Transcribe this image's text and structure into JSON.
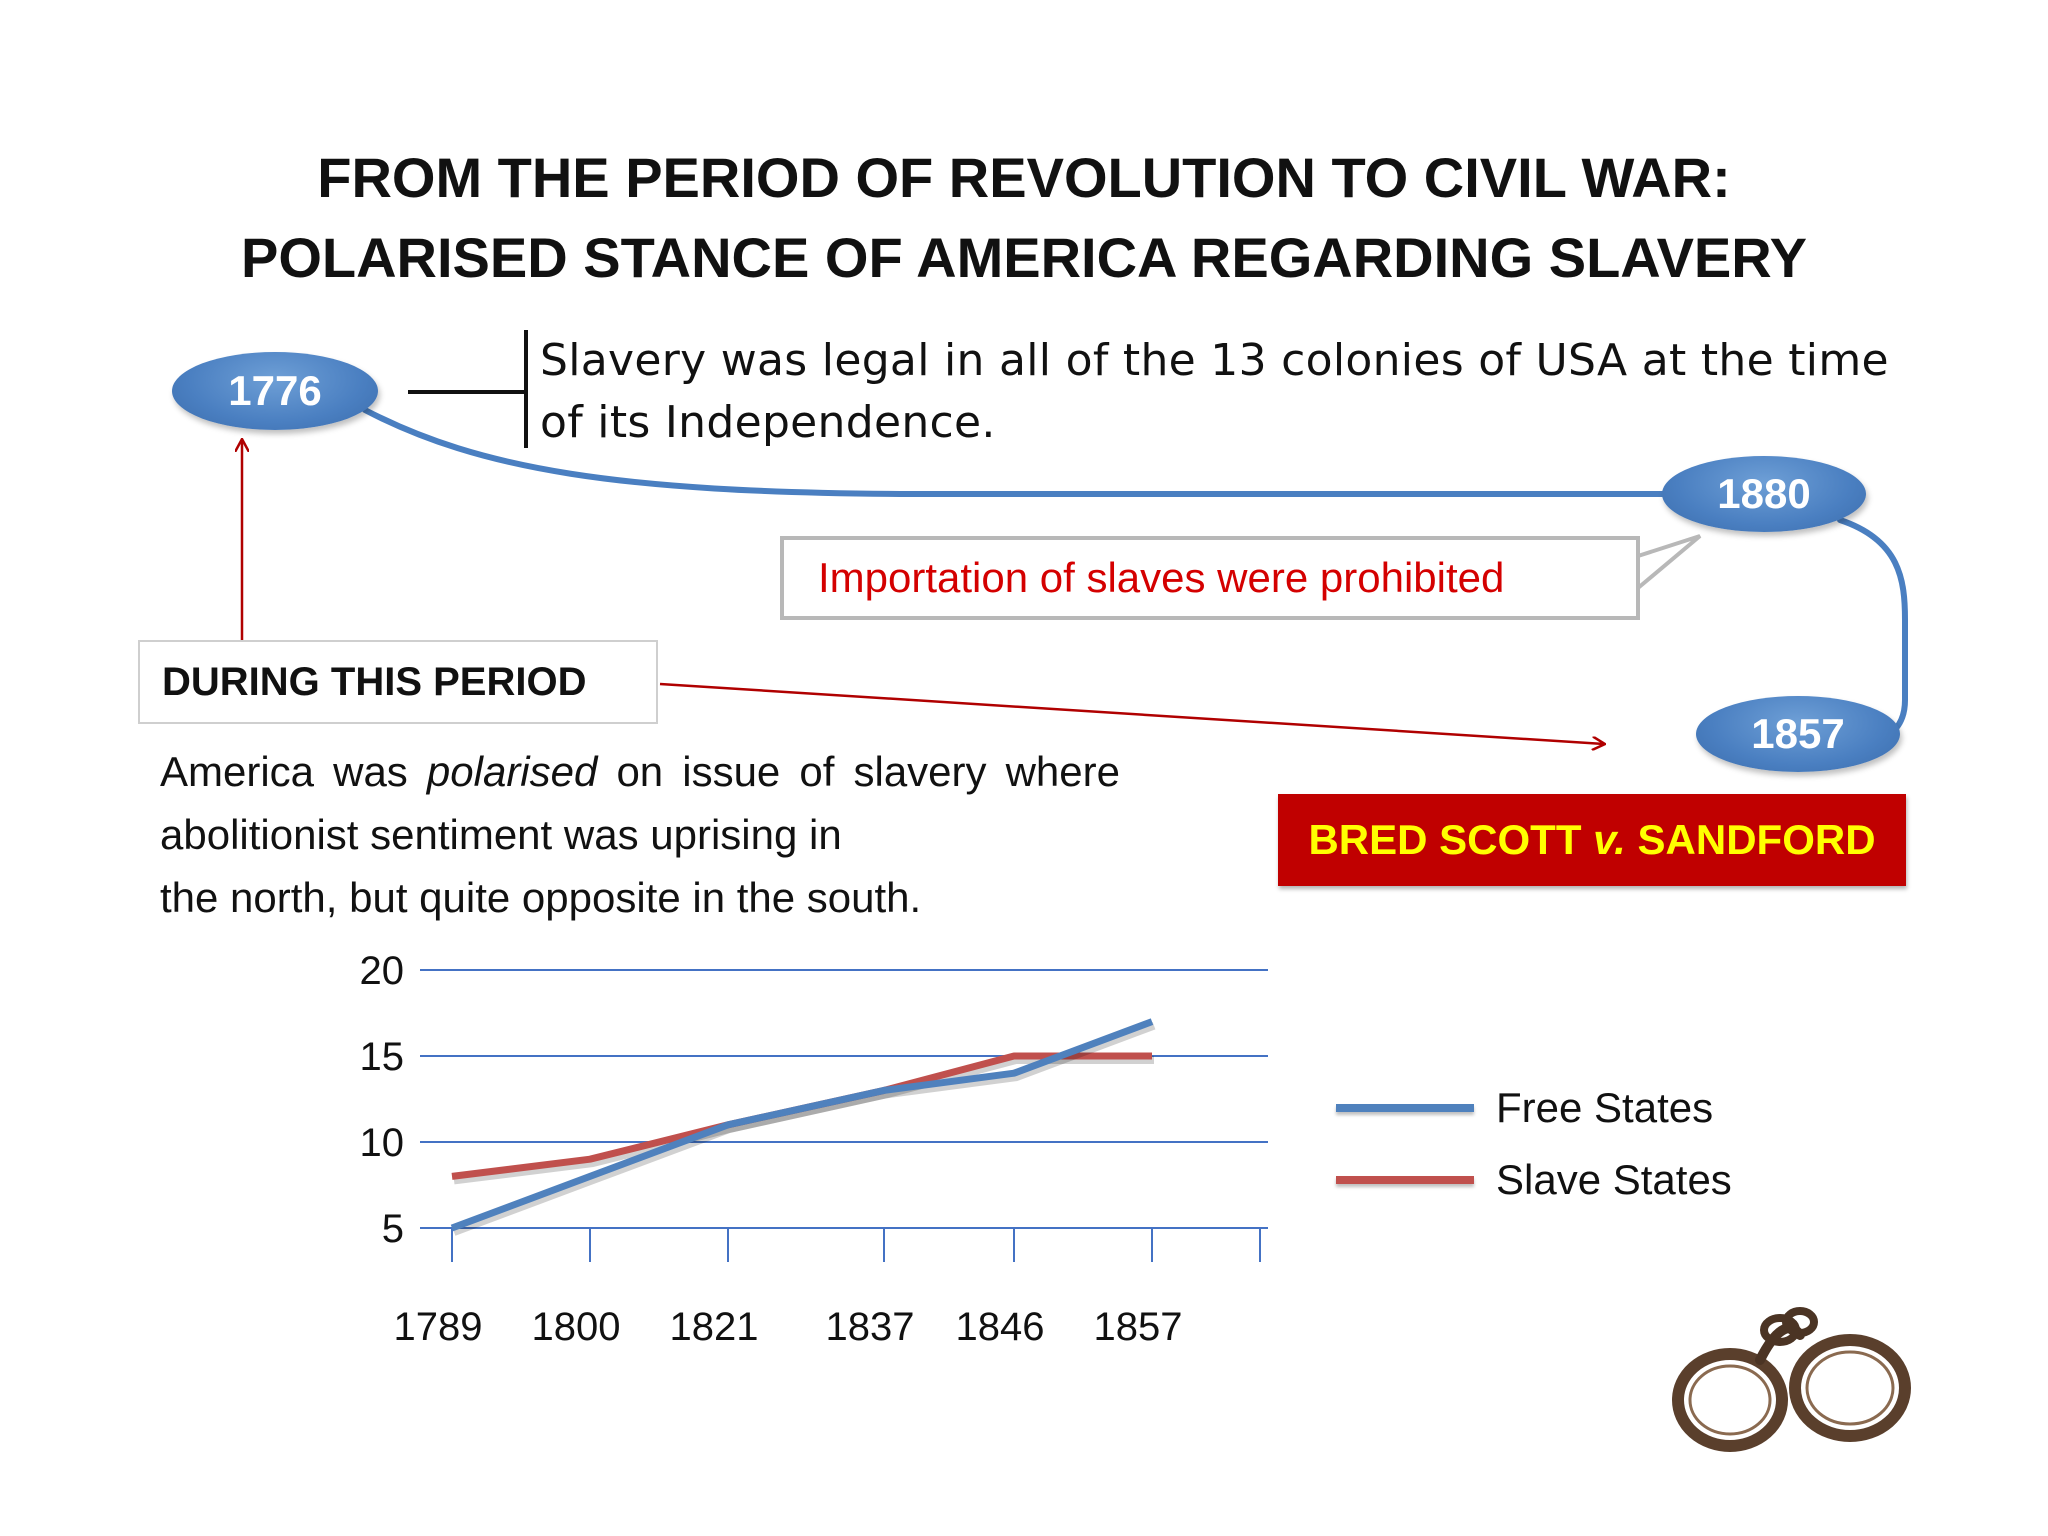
{
  "title": {
    "line1": "FROM THE PERIOD OF REVOLUTION TO CIVIL WAR:",
    "line2": "POLARISED STANCE OF AMERICA REGARDING SLAVERY"
  },
  "timeline": {
    "node_1776": "1776",
    "node_1880": "1880",
    "node_1857": "1857",
    "fact_1776": "Slavery was legal in all of the 13 colonies of USA at the time of its Independence.",
    "callout_1880": "Importation of slaves were prohibited",
    "period_label": "DURING THIS PERIOD",
    "polarised": {
      "pre": "America was ",
      "emphasis": "polarised",
      "mid": " on issue of slavery where abolitionist sentiment was uprising in",
      "last": "the north, but quite opposite in the south."
    },
    "case": {
      "pre": "BRED SCOTT ",
      "emphasis": "v.",
      "post": " SANDFORD"
    }
  },
  "colors": {
    "timeline_blue": "#4a7fc1",
    "callout_red": "#d40000",
    "case_bg": "#c00000",
    "case_text": "#ffff00",
    "free_states": "#4f81bd",
    "slave_states": "#c0504d",
    "gridline": "#4472c4"
  },
  "chart_data": {
    "type": "line",
    "categories": [
      "1789",
      "1800",
      "1821",
      "1837",
      "1846",
      "1857"
    ],
    "series": [
      {
        "name": "Free States",
        "values": [
          5,
          8,
          11,
          13,
          14,
          17
        ]
      },
      {
        "name": "Slave States",
        "values": [
          8,
          9,
          11,
          13,
          15,
          15
        ]
      }
    ],
    "yticks": [
      "5",
      "10",
      "15",
      "20"
    ],
    "ylim": [
      5,
      20
    ],
    "grid": true,
    "legend": "right"
  },
  "decor": {
    "image_icon": "shackles-icon"
  }
}
